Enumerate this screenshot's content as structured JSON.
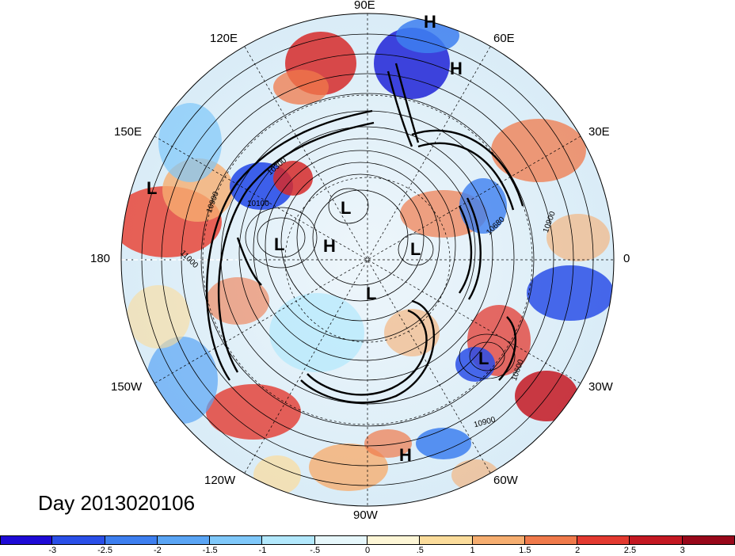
{
  "map": {
    "title": "Day 2013020106",
    "longitude_labels": [
      {
        "id": "90e",
        "text": "90E"
      },
      {
        "id": "60e",
        "text": "60E"
      },
      {
        "id": "30e",
        "text": "30E"
      },
      {
        "id": "0",
        "text": "0"
      },
      {
        "id": "30w",
        "text": "30W"
      },
      {
        "id": "60w",
        "text": "60W"
      },
      {
        "id": "90w",
        "text": "90W"
      },
      {
        "id": "120w",
        "text": "120W"
      },
      {
        "id": "150w",
        "text": "150W"
      },
      {
        "id": "180",
        "text": "180"
      },
      {
        "id": "150e",
        "text": "150E"
      },
      {
        "id": "120e",
        "text": "120E"
      }
    ],
    "pressure_centers": [
      {
        "id": "h1",
        "text": "H"
      },
      {
        "id": "h2",
        "text": "H"
      },
      {
        "id": "l1",
        "text": "L"
      },
      {
        "id": "l2",
        "text": "L"
      },
      {
        "id": "l3",
        "text": "L"
      },
      {
        "id": "h3",
        "text": "H"
      },
      {
        "id": "l4",
        "text": "L"
      },
      {
        "id": "l5",
        "text": "L"
      },
      {
        "id": "l6",
        "text": "L"
      },
      {
        "id": "h4",
        "text": "H"
      }
    ],
    "contour_labels": [
      {
        "id": "c1",
        "text": "10900"
      },
      {
        "id": "c2",
        "text": "10100"
      },
      {
        "id": "c3",
        "text": "11000"
      },
      {
        "id": "c4",
        "text": "10680"
      },
      {
        "id": "c5",
        "text": "10900"
      },
      {
        "id": "c6",
        "text": "10600"
      },
      {
        "id": "c7",
        "text": "10900"
      },
      {
        "id": "c8",
        "text": "10300"
      }
    ]
  },
  "colorbar": {
    "colors": [
      "#1e0ad6",
      "#2a4fe8",
      "#3d7ff0",
      "#5aa5f5",
      "#7fc8fa",
      "#b2e8fc",
      "#e6f7fb",
      "#fdf6d6",
      "#fbdc9b",
      "#f6ae70",
      "#f07a4b",
      "#e33a30",
      "#c41822",
      "#98081a"
    ],
    "tick_labels": [
      "-3",
      "-2.5",
      "-2",
      "-1.5",
      "-1",
      "-.5",
      "0",
      ".5",
      "1",
      "1.5",
      "2",
      "2.5",
      "3"
    ]
  }
}
